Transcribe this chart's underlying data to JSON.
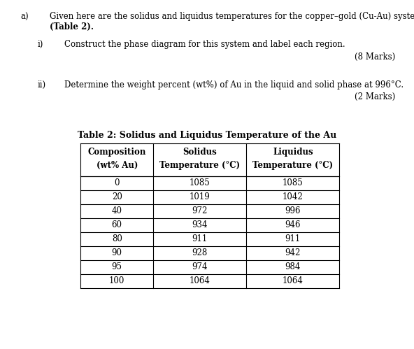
{
  "text_color": "#000000",
  "bg_color": "#ffffff",
  "table_title": "Table 2: Solidus and Liquidus Temperature of the Au",
  "col_header_line1": [
    "Composition",
    "Solidus",
    "Liquidus"
  ],
  "col_header_line2": [
    "(wt% Au)",
    "Temperature (°C)",
    "Temperature (°C)"
  ],
  "rows": [
    [
      "0",
      "1085",
      "1085"
    ],
    [
      "20",
      "1019",
      "1042"
    ],
    [
      "40",
      "972",
      "996"
    ],
    [
      "60",
      "934",
      "946"
    ],
    [
      "80",
      "911",
      "911"
    ],
    [
      "90",
      "928",
      "942"
    ],
    [
      "95",
      "974",
      "984"
    ],
    [
      "100",
      "1064",
      "1064"
    ]
  ],
  "text_a_line1": "Given here are the solidus and liquidus temperatures for the copper–gold (Cu-Au) system",
  "text_a_line2": "(Table 2).",
  "text_i": "Construct the phase diagram for this system and label each region.",
  "marks_i": "(8 Marks)",
  "text_ii": "Determine the weight percent (wt%) of Au in the liquid and solid phase at 996°C.",
  "marks_ii": "(2 Marks)"
}
